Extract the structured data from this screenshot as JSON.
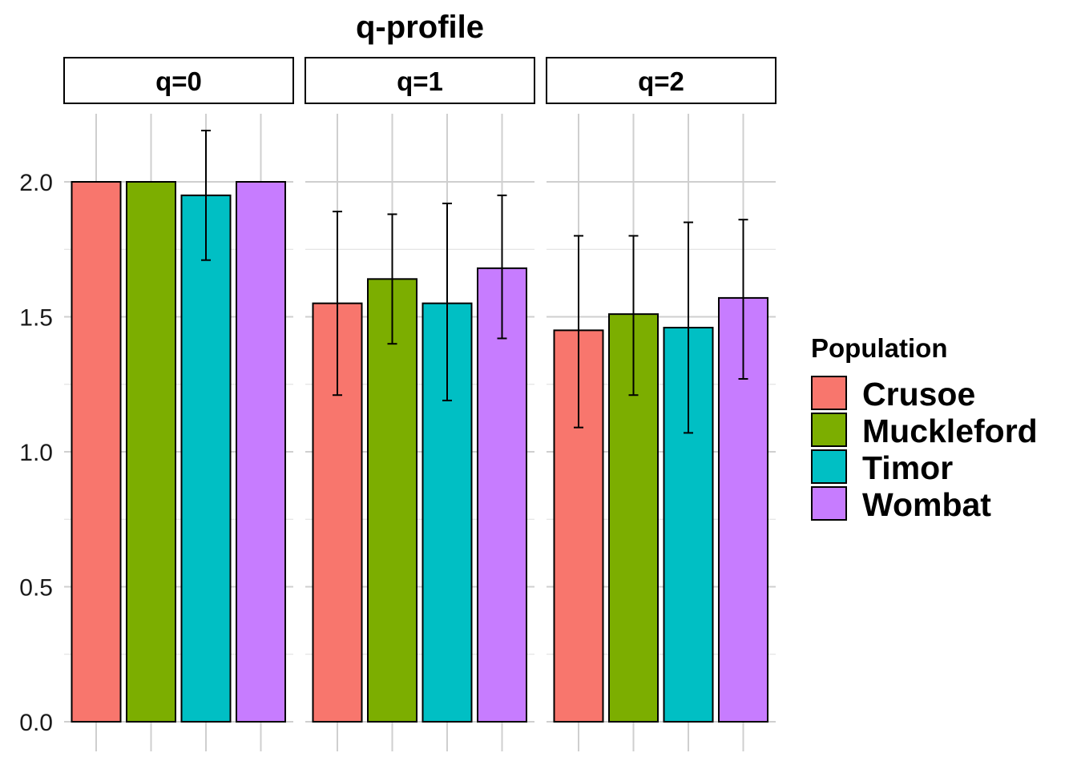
{
  "chart_data": {
    "type": "bar",
    "title": "q-profile",
    "xlabel": "",
    "ylabel": "",
    "ylim": [
      0,
      2.2
    ],
    "yticks": [
      "0.0",
      "0.5",
      "1.0",
      "1.5",
      "2.0"
    ],
    "grid": true,
    "legend": {
      "title": "Population",
      "position": "right"
    },
    "categories": [
      "Crusoe",
      "Muckleford",
      "Timor",
      "Wombat"
    ],
    "colors": {
      "Crusoe": "#F8766D",
      "Muckleford": "#7CAE00",
      "Timor": "#00BFC4",
      "Wombat": "#C77CFF"
    },
    "facets": [
      {
        "label": "q=0",
        "values": [
          2.0,
          2.0,
          1.95,
          2.0
        ],
        "error_low": [
          null,
          null,
          1.71,
          null
        ],
        "error_high": [
          null,
          null,
          2.19,
          null
        ]
      },
      {
        "label": "q=1",
        "values": [
          1.55,
          1.64,
          1.55,
          1.68
        ],
        "error_low": [
          1.21,
          1.4,
          1.19,
          1.42
        ],
        "error_high": [
          1.89,
          1.88,
          1.92,
          1.95
        ]
      },
      {
        "label": "q=2",
        "values": [
          1.45,
          1.51,
          1.46,
          1.57
        ],
        "error_low": [
          1.09,
          1.21,
          1.07,
          1.27
        ],
        "error_high": [
          1.8,
          1.8,
          1.85,
          1.86
        ]
      }
    ]
  }
}
